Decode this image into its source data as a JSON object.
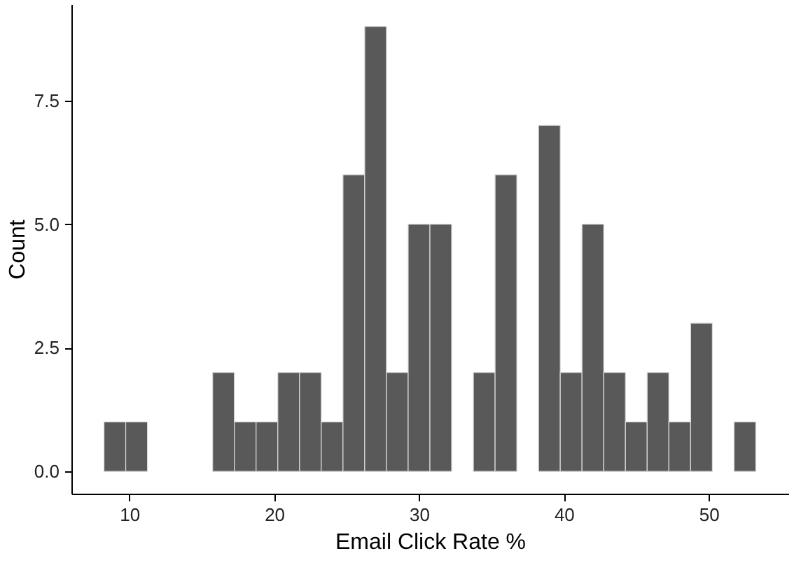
{
  "chart_data": {
    "type": "histogram",
    "xlabel": "Email Click Rate %",
    "ylabel": "Count",
    "color": "#595959",
    "bins": [
      8.25,
      9.75,
      11.25,
      12.75,
      14.25,
      15.75,
      17.25,
      18.75,
      20.25,
      21.75,
      23.25,
      24.75,
      26.25,
      27.75,
      29.25,
      30.75,
      32.25,
      33.75,
      35.25,
      36.75,
      38.25,
      39.75,
      41.25,
      42.75,
      44.25,
      45.75,
      47.25,
      48.75,
      50.25,
      51.75,
      53.25
    ],
    "values": [
      1,
      1,
      0,
      0,
      0,
      2,
      1,
      1,
      2,
      2,
      1,
      6,
      9,
      2,
      5,
      5,
      0,
      2,
      6,
      0,
      7,
      2,
      5,
      2,
      1,
      2,
      1,
      3,
      0,
      1
    ],
    "xlim": [
      6.0,
      55.5
    ],
    "xticks": [
      10,
      20,
      30,
      40,
      50
    ],
    "ylim": [
      -0.45,
      9.45
    ],
    "yticks": [
      {
        "value": 0,
        "label": "0.0"
      },
      {
        "value": 2.5,
        "label": "2.5"
      },
      {
        "value": 5,
        "label": "5.0"
      },
      {
        "value": 7.5,
        "label": "7.5"
      }
    ],
    "grid": false
  }
}
